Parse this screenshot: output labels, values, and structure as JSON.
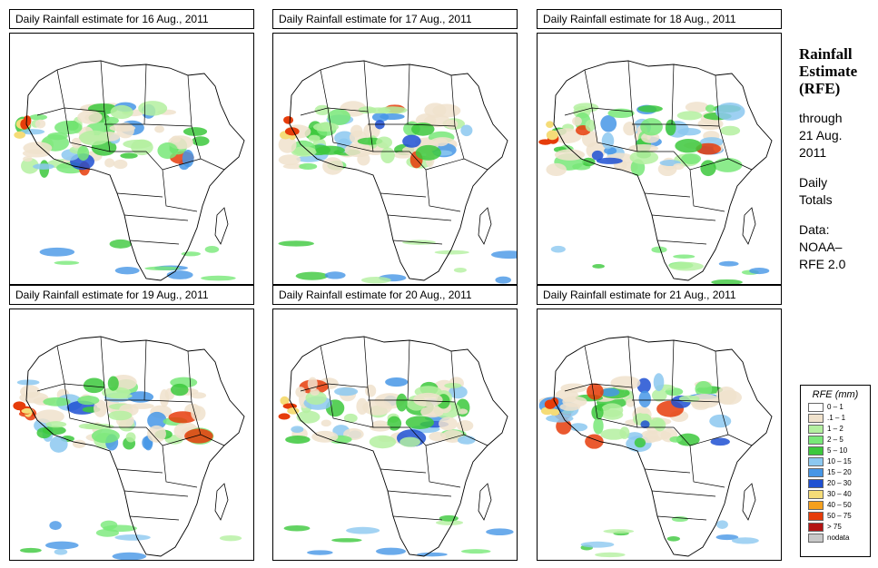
{
  "panels": [
    {
      "title": "Daily Rainfall estimate for  16 Aug., 2011"
    },
    {
      "title": "Daily Rainfall estimate for  17 Aug., 2011"
    },
    {
      "title": "Daily Rainfall estimate for  18 Aug., 2011"
    },
    {
      "title": "Daily Rainfall estimate for  19 Aug., 2011"
    },
    {
      "title": "Daily Rainfall estimate for  20 Aug., 2011"
    },
    {
      "title": "Daily Rainfall estimate for  21 Aug., 2011"
    }
  ],
  "side": {
    "title_line1": "Rainfall",
    "title_line2": "Estimate",
    "title_line3": "(RFE)",
    "through_line1": "through",
    "through_line2": "21 Aug.",
    "through_line3": "2011",
    "daily_line1": "Daily",
    "daily_line2": "Totals",
    "data_line1": "Data:",
    "data_line2": "NOAA–",
    "data_line3": "RFE 2.0"
  },
  "legend": {
    "title": "RFE (mm)",
    "items": [
      {
        "label": "0 – 1",
        "color": "#ffffff"
      },
      {
        "label": ".1 – 1",
        "color": "#f0e2cc"
      },
      {
        "label": "1 – 2",
        "color": "#b4f0a0"
      },
      {
        "label": "2 – 5",
        "color": "#78e878"
      },
      {
        "label": "5 – 10",
        "color": "#3cc83c"
      },
      {
        "label": "10 – 15",
        "color": "#8cc8f0"
      },
      {
        "label": "15 – 20",
        "color": "#4696e6"
      },
      {
        "label": "20 – 30",
        "color": "#1e50d2"
      },
      {
        "label": "30 – 40",
        "color": "#f5dc78"
      },
      {
        "label": "40 – 50",
        "color": "#f5a01e"
      },
      {
        "label": "50 – 75",
        "color": "#e63c0a"
      },
      {
        "label": "> 75",
        "color": "#b41414"
      },
      {
        "label": "nodata",
        "color": "#c8c8c8"
      }
    ]
  }
}
